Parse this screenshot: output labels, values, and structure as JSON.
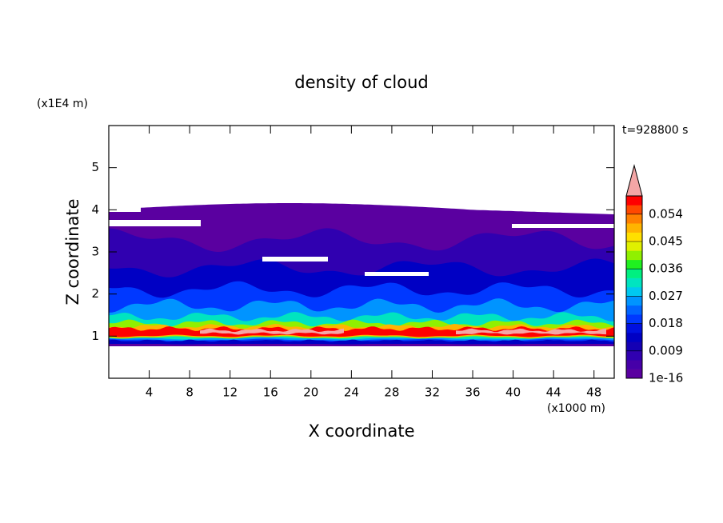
{
  "chart_data": {
    "type": "contour",
    "title": "density of cloud",
    "x_label": "X coordinate",
    "y_label": "Z coordinate",
    "x_unit": "(x1000 m)",
    "y_unit": "(x1E4 m)",
    "annotation": "t=928800 s",
    "xlim": [
      0,
      50
    ],
    "ylim": [
      0,
      6
    ],
    "xticks": [
      4,
      8,
      12,
      16,
      20,
      24,
      28,
      32,
      36,
      40,
      44,
      48
    ],
    "yticks": [
      1,
      2,
      3,
      4,
      5
    ],
    "colorbar": {
      "clim": [
        1e-16,
        0.06
      ],
      "ticks": [
        1e-16,
        0.009,
        0.018,
        0.027,
        0.036,
        0.045,
        0.054
      ],
      "colors": [
        "#5a00a0",
        "#4600a8",
        "#3000b0",
        "#1400b4",
        "#0000c4",
        "#0010e0",
        "#0038ff",
        "#0064ff",
        "#0094ff",
        "#00c8f0",
        "#00e4c0",
        "#00f080",
        "#20f020",
        "#90f000",
        "#e0f000",
        "#ffe000",
        "#ffb400",
        "#ff8000",
        "#ff4800",
        "#ff0000"
      ],
      "extend_color": "#f4a6a6"
    }
  }
}
